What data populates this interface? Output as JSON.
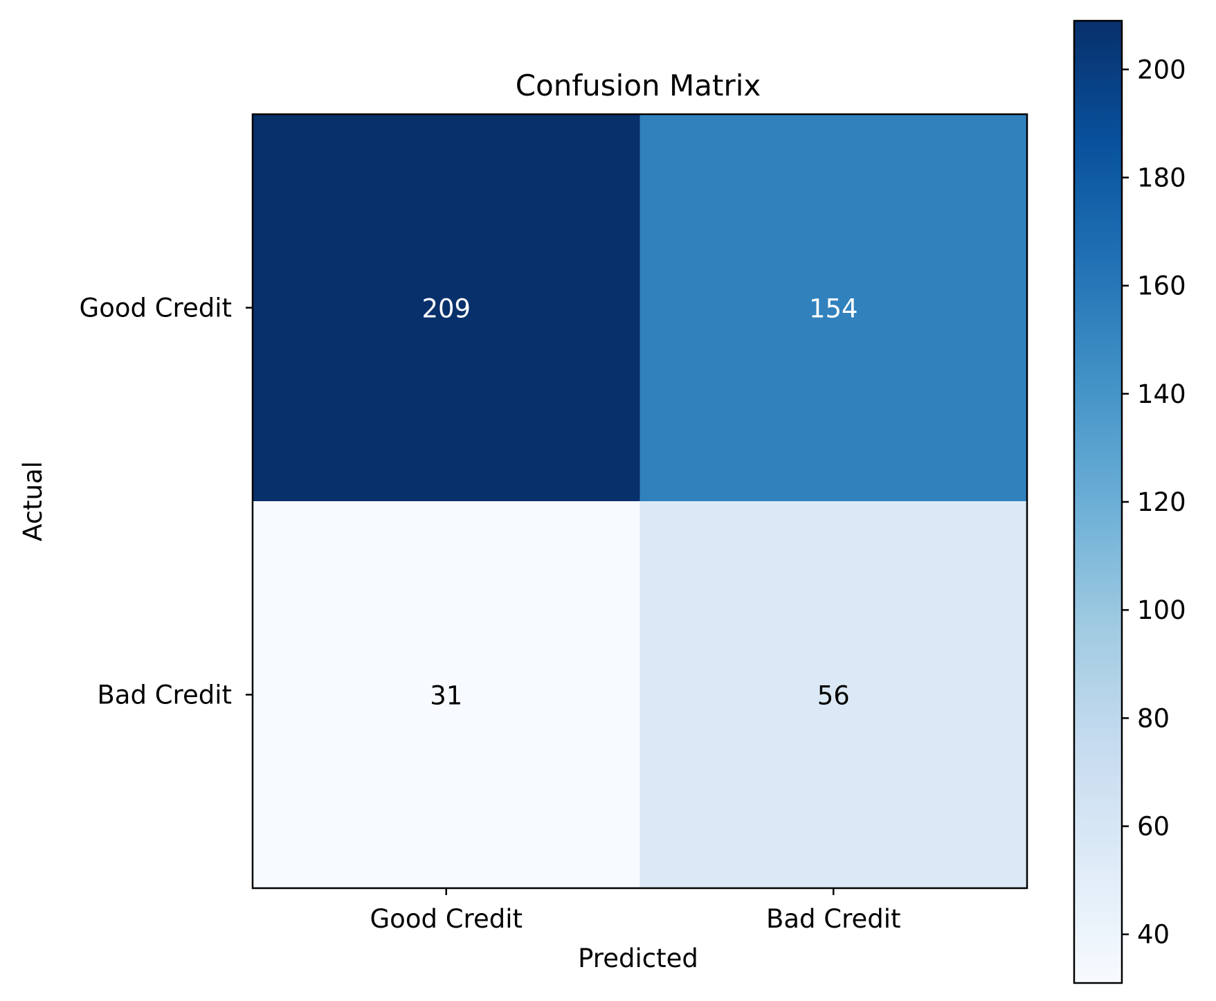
{
  "chart_data": {
    "type": "heatmap",
    "title": "Confusion Matrix",
    "xlabel": "Predicted",
    "ylabel": "Actual",
    "x_categories": [
      "Good Credit",
      "Bad Credit"
    ],
    "y_categories": [
      "Good Credit",
      "Bad Credit"
    ],
    "values": [
      [
        209,
        154
      ],
      [
        31,
        56
      ]
    ],
    "colormap": "Blues",
    "color_range": [
      31,
      209
    ],
    "colorbar_ticks": [
      40,
      60,
      80,
      100,
      120,
      140,
      160,
      180,
      200
    ],
    "grid": false
  }
}
